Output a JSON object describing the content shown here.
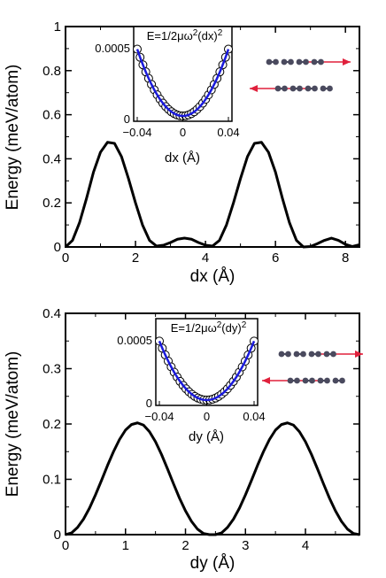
{
  "colors": {
    "curve": "#000000",
    "fit": "#1a1adc",
    "arrow": "#e0203c",
    "atom": "#4a4a5e",
    "marker_face": "#ffffff",
    "marker_edge": "#000000"
  },
  "chart_data": [
    {
      "type": "line",
      "panel": "top",
      "xlabel": "dx (Å)",
      "ylabel": "Energy (meV/atom)",
      "xlim": [
        0,
        8.4
      ],
      "ylim": [
        0,
        1
      ],
      "xticks": [
        "0",
        "2",
        "4",
        "6",
        "8"
      ],
      "yticks": [
        "0",
        "0.2",
        "0.4",
        "0.6",
        "0.8",
        "1"
      ],
      "series": [
        {
          "x": [
            0,
            0.2,
            0.4,
            0.6,
            0.8,
            1.0,
            1.2,
            1.4,
            1.6,
            1.8,
            2.0,
            2.2,
            2.4,
            2.6,
            2.8,
            3.0,
            3.2,
            3.4,
            3.6,
            3.8,
            4.0,
            4.2,
            4.4,
            4.6,
            4.8,
            5.0,
            5.2,
            5.4,
            5.6,
            5.8,
            6.0,
            6.2,
            6.4,
            6.6,
            6.8,
            7.0,
            7.2,
            7.4,
            7.6,
            7.8,
            8.0,
            8.2,
            8.4
          ],
          "y": [
            0.0,
            0.03,
            0.11,
            0.22,
            0.34,
            0.43,
            0.475,
            0.47,
            0.41,
            0.31,
            0.2,
            0.1,
            0.03,
            0.004,
            0.008,
            0.02,
            0.035,
            0.04,
            0.035,
            0.02,
            0.008,
            0.004,
            0.03,
            0.1,
            0.2,
            0.31,
            0.41,
            0.47,
            0.475,
            0.43,
            0.34,
            0.22,
            0.11,
            0.03,
            0.0,
            0.002,
            0.015,
            0.03,
            0.04,
            0.03,
            0.012,
            0.002,
            0.01
          ]
        }
      ],
      "inset": {
        "type": "scatter",
        "title": "E=1/2μω²(dx)²",
        "title_parts": [
          "E=1/2μω",
          "2",
          "(dx)",
          "2"
        ],
        "xlabel": "dx (Å)",
        "xlim": [
          -0.04,
          0.04
        ],
        "ylim": [
          0,
          0.0005
        ],
        "xticks": [
          "−0.04",
          "0",
          "0.04"
        ],
        "yticks": [
          "0",
          "0.0005"
        ],
        "points_x": [
          -0.04,
          -0.0375,
          -0.035,
          -0.0325,
          -0.03,
          -0.0275,
          -0.025,
          -0.0225,
          -0.02,
          -0.0175,
          -0.015,
          -0.0125,
          -0.01,
          -0.0075,
          -0.005,
          -0.0025,
          0,
          0.0025,
          0.005,
          0.0075,
          0.01,
          0.0125,
          0.015,
          0.0175,
          0.02,
          0.0225,
          0.025,
          0.0275,
          0.03,
          0.0325,
          0.035,
          0.0375,
          0.04
        ],
        "fit": "quadratic"
      }
    },
    {
      "type": "line",
      "panel": "bottom",
      "xlabel": "dy (Å)",
      "ylabel": "Energy (meV/atom)",
      "xlim": [
        0,
        4.9
      ],
      "ylim": [
        0,
        0.4
      ],
      "xticks": [
        "0",
        "1",
        "2",
        "3",
        "4"
      ],
      "yticks": [
        "0",
        "0.1",
        "0.2",
        "0.3",
        "0.4"
      ],
      "series": [
        {
          "x": [
            0,
            0.1,
            0.2,
            0.3,
            0.4,
            0.5,
            0.6,
            0.7,
            0.8,
            0.9,
            1.0,
            1.1,
            1.2,
            1.3,
            1.4,
            1.5,
            1.6,
            1.7,
            1.8,
            1.9,
            2.0,
            2.1,
            2.2,
            2.3,
            2.4,
            2.45,
            2.5,
            2.6,
            2.7,
            2.8,
            2.9,
            3.0,
            3.1,
            3.2,
            3.3,
            3.4,
            3.5,
            3.6,
            3.7,
            3.8,
            3.9,
            4.0,
            4.1,
            4.2,
            4.3,
            4.4,
            4.5,
            4.6,
            4.7,
            4.8,
            4.9
          ],
          "y": [
            0.0,
            0.003,
            0.013,
            0.028,
            0.048,
            0.072,
            0.098,
            0.125,
            0.15,
            0.172,
            0.189,
            0.199,
            0.202,
            0.198,
            0.186,
            0.168,
            0.145,
            0.119,
            0.092,
            0.066,
            0.043,
            0.024,
            0.01,
            0.002,
            0.0,
            0.0,
            0.0,
            0.003,
            0.013,
            0.028,
            0.048,
            0.072,
            0.098,
            0.125,
            0.15,
            0.172,
            0.189,
            0.199,
            0.202,
            0.198,
            0.186,
            0.168,
            0.145,
            0.119,
            0.092,
            0.066,
            0.043,
            0.024,
            0.01,
            0.002,
            0.0
          ]
        }
      ],
      "inset": {
        "type": "scatter",
        "title": "E=1/2μω²(dy)²",
        "title_parts": [
          "E=1/2μω",
          "2",
          "(dy)",
          "2"
        ],
        "xlabel": "dy (Å)",
        "xlim": [
          -0.04,
          0.04
        ],
        "ylim": [
          0,
          0.0005
        ],
        "xticks": [
          "−0.04",
          "0",
          "0.04"
        ],
        "yticks": [
          "0",
          "0.0005"
        ],
        "points_x": [
          -0.04,
          -0.0375,
          -0.035,
          -0.0325,
          -0.03,
          -0.0275,
          -0.025,
          -0.0225,
          -0.02,
          -0.0175,
          -0.015,
          -0.0125,
          -0.01,
          -0.0075,
          -0.005,
          -0.0025,
          0,
          0.0025,
          0.005,
          0.0075,
          0.01,
          0.0125,
          0.015,
          0.0175,
          0.02,
          0.0225,
          0.025,
          0.0275,
          0.03,
          0.0325,
          0.035,
          0.0375,
          0.04
        ],
        "fit": "quadratic"
      }
    }
  ]
}
